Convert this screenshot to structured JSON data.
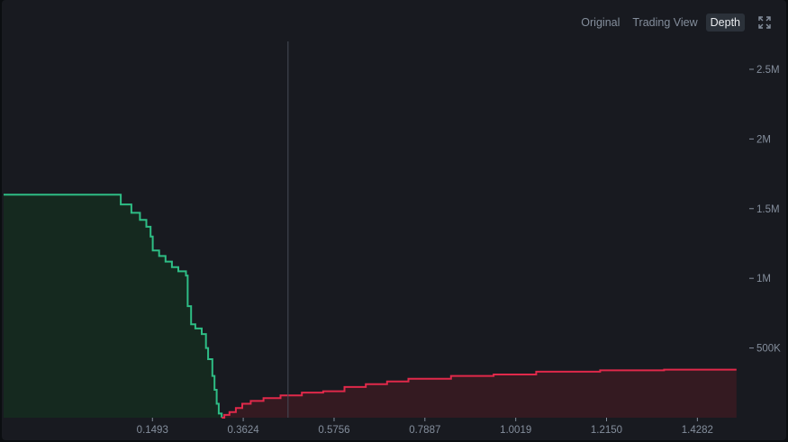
{
  "toolbar": {
    "tabs": [
      {
        "label": "Original",
        "active": false
      },
      {
        "label": "Trading View",
        "active": false
      },
      {
        "label": "Depth",
        "active": true
      }
    ],
    "expand_icon": "expand-icon"
  },
  "colors": {
    "bid": "#2ebd85",
    "bid_fill": "#15291f",
    "ask": "#e0294a",
    "ask_fill": "#341a21",
    "mid_line": "#474d57",
    "grid_tick": "#848e9c"
  },
  "chart_data": {
    "type": "area",
    "title": "",
    "xlabel": "",
    "ylabel": "",
    "xlim": [
      -0.2,
      1.55
    ],
    "ylim": [
      0,
      2.7
    ],
    "x_ticks": [
      0.1493,
      0.3624,
      0.5756,
      0.7887,
      1.0019,
      1.215,
      1.4282
    ],
    "x_tick_labels": [
      "0.1493",
      "0.3624",
      "0.5756",
      "0.7887",
      "1.0019",
      "1.2150",
      "1.4282"
    ],
    "y_ticks": [
      0.5,
      1.0,
      1.5,
      2.0,
      2.5
    ],
    "y_tick_labels": [
      "500K",
      "1M",
      "1.5M",
      "2M",
      "2.5M"
    ],
    "y_unit": "M",
    "axis_position": "right",
    "grid": false,
    "mid_price": 0.4675,
    "series": [
      {
        "side": "bid",
        "points": [
          [
            -0.2,
            1.6
          ],
          [
            0.075,
            1.6
          ],
          [
            0.075,
            1.53
          ],
          [
            0.1,
            1.53
          ],
          [
            0.1,
            1.47
          ],
          [
            0.12,
            1.47
          ],
          [
            0.12,
            1.42
          ],
          [
            0.135,
            1.42
          ],
          [
            0.135,
            1.37
          ],
          [
            0.145,
            1.37
          ],
          [
            0.145,
            1.3
          ],
          [
            0.15,
            1.3
          ],
          [
            0.15,
            1.2
          ],
          [
            0.165,
            1.2
          ],
          [
            0.165,
            1.16
          ],
          [
            0.18,
            1.16
          ],
          [
            0.18,
            1.12
          ],
          [
            0.195,
            1.12
          ],
          [
            0.195,
            1.08
          ],
          [
            0.21,
            1.08
          ],
          [
            0.21,
            1.05
          ],
          [
            0.228,
            1.05
          ],
          [
            0.228,
            1.02
          ],
          [
            0.232,
            1.02
          ],
          [
            0.232,
            0.8
          ],
          [
            0.24,
            0.8
          ],
          [
            0.24,
            0.67
          ],
          [
            0.25,
            0.67
          ],
          [
            0.25,
            0.64
          ],
          [
            0.265,
            0.64
          ],
          [
            0.265,
            0.6
          ],
          [
            0.275,
            0.6
          ],
          [
            0.275,
            0.5
          ],
          [
            0.28,
            0.5
          ],
          [
            0.28,
            0.42
          ],
          [
            0.29,
            0.42
          ],
          [
            0.29,
            0.3
          ],
          [
            0.295,
            0.3
          ],
          [
            0.295,
            0.2
          ],
          [
            0.3,
            0.2
          ],
          [
            0.3,
            0.1
          ],
          [
            0.305,
            0.1
          ],
          [
            0.305,
            0.03
          ],
          [
            0.312,
            0.03
          ],
          [
            0.312,
            0.0
          ]
        ]
      },
      {
        "side": "ask",
        "points": [
          [
            0.312,
            0.0
          ],
          [
            0.318,
            0.0
          ],
          [
            0.318,
            0.02
          ],
          [
            0.33,
            0.02
          ],
          [
            0.33,
            0.04
          ],
          [
            0.345,
            0.04
          ],
          [
            0.345,
            0.07
          ],
          [
            0.36,
            0.07
          ],
          [
            0.36,
            0.1
          ],
          [
            0.38,
            0.1
          ],
          [
            0.38,
            0.12
          ],
          [
            0.41,
            0.12
          ],
          [
            0.41,
            0.14
          ],
          [
            0.45,
            0.14
          ],
          [
            0.45,
            0.16
          ],
          [
            0.5,
            0.16
          ],
          [
            0.5,
            0.18
          ],
          [
            0.55,
            0.18
          ],
          [
            0.55,
            0.19
          ],
          [
            0.6,
            0.19
          ],
          [
            0.6,
            0.22
          ],
          [
            0.65,
            0.22
          ],
          [
            0.65,
            0.24
          ],
          [
            0.7,
            0.24
          ],
          [
            0.7,
            0.26
          ],
          [
            0.75,
            0.26
          ],
          [
            0.75,
            0.28
          ],
          [
            0.85,
            0.28
          ],
          [
            0.85,
            0.3
          ],
          [
            0.95,
            0.3
          ],
          [
            0.95,
            0.31
          ],
          [
            1.05,
            0.31
          ],
          [
            1.05,
            0.33
          ],
          [
            1.2,
            0.33
          ],
          [
            1.2,
            0.34
          ],
          [
            1.35,
            0.34
          ],
          [
            1.35,
            0.345
          ],
          [
            1.52,
            0.345
          ]
        ]
      }
    ]
  }
}
